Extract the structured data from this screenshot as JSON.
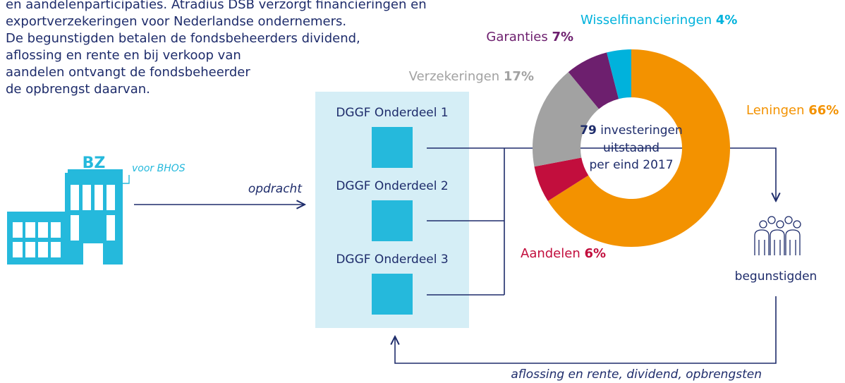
{
  "intro": [
    "en aandelenparticipaties. Atradius DSB verzorgt financieringen en",
    "exportverzekeringen voor Nederlandse ondernemers.",
    "De begunstigden betalen de fondsbeheerders dividend,",
    "aflossing en rente en bij verkoop van",
    "aandelen ontvangt de fondsbeheerder",
    "de opbrengst daarvan."
  ],
  "building": {
    "label": "BZ",
    "note": "voor BHOS"
  },
  "arrow_label": "opdracht",
  "parts": [
    "DGGF Onderdeel 1",
    "DGGF Onderdeel 2",
    "DGGF Onderdeel 3"
  ],
  "recipients": "begunstigden",
  "return_label": "aflossing en rente,  dividend, opbrengsten",
  "chart_data": {
    "type": "donut",
    "categories": [
      "Leningen",
      "Aandelen",
      "Verzekeringen",
      "Garanties",
      "Wisselfinancieringen"
    ],
    "values": [
      66,
      6,
      17,
      7,
      4
    ],
    "value_labels": [
      "66%",
      "6%",
      "17%",
      "7%",
      "4%"
    ],
    "colors": [
      "#f39200",
      "#c20e3d",
      "#a2a2a2",
      "#6d1f6e",
      "#00b2dc"
    ],
    "center": {
      "number": "79",
      "lines": [
        "investeringen",
        "uitstaand",
        "per eind 2017"
      ]
    }
  }
}
